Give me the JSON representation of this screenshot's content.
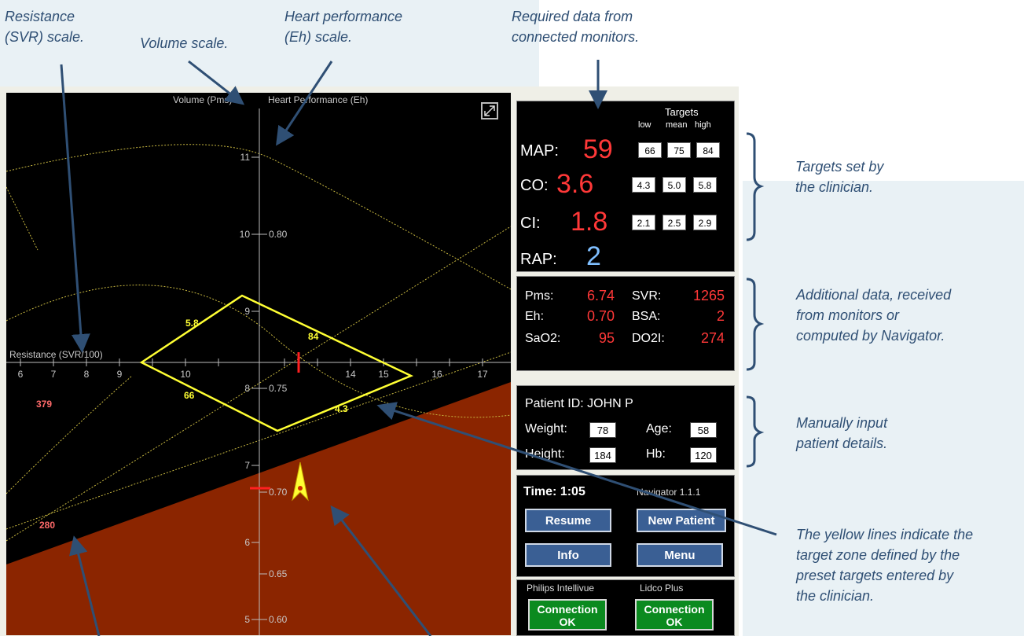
{
  "annotations": {
    "svr_scale": "Resistance (SVR) scale.",
    "volume_scale": "Volume scale.",
    "eh_scale_1": "Heart performance",
    "eh_scale_2": "(Eh) scale.",
    "required_1": "Required data from",
    "required_2": "connected monitors.",
    "targets_1": "Targets set by",
    "targets_2": "the clinician.",
    "additional_1": "Additional data, received",
    "additional_2": "from monitors or",
    "additional_3": "computed by Navigator.",
    "manual_1": "Manually input",
    "manual_2": "patient details.",
    "yellow_1": "The yellow lines indicate the",
    "yellow_2": "target zone defined by the",
    "yellow_3": "preset targets entered by",
    "yellow_4": "the clinician."
  },
  "plot": {
    "volume_axis_label": "Volume (Pms)",
    "eh_axis_label": "Heart Performance (Eh)",
    "svr_axis_label": "Resistance (SVR/100)",
    "volume_ticks": [
      "11",
      "10",
      "9",
      "8",
      "7",
      "6",
      "5"
    ],
    "eh_ticks": [
      "0.80",
      "0.75",
      "0.70",
      "0.65",
      "0.60"
    ],
    "svr_ticks": [
      "6",
      "7",
      "8",
      "9",
      "10",
      "14",
      "15",
      "16",
      "17"
    ],
    "zone_labels": {
      "left": "5.8",
      "top": "84",
      "bottom_left": "66",
      "bottom_right": "4.3"
    },
    "do2i_labels": {
      "upper": "379",
      "lower": "280"
    }
  },
  "targets": {
    "header": "Targets",
    "low": "low",
    "mean": "mean",
    "high": "high",
    "map": {
      "label": "MAP:",
      "value": "59",
      "low": "66",
      "mean": "75",
      "high": "84"
    },
    "co": {
      "label": "CO:",
      "value": "3.6",
      "low": "4.3",
      "mean": "5.0",
      "high": "5.8"
    },
    "ci": {
      "label": "CI:",
      "value": "1.8",
      "low": "2.1",
      "mean": "2.5",
      "high": "2.9"
    },
    "rap": {
      "label": "RAP:",
      "value": "2"
    }
  },
  "additional": {
    "pms_label": "Pms:",
    "pms_value": "6.74",
    "svr_label": "SVR:",
    "svr_value": "1265",
    "eh_label": "Eh:",
    "eh_value": "0.70",
    "bsa_label": "BSA:",
    "bsa_value": "2",
    "sao2_label": "SaO2:",
    "sao2_value": "95",
    "do2i_label": "DO2I:",
    "do2i_value": "274"
  },
  "patient": {
    "id_label": "Patient ID: JOHN P",
    "weight_label": "Weight:",
    "weight_value": "78",
    "age_label": "Age:",
    "age_value": "58",
    "height_label": "Height:",
    "height_value": "184",
    "hb_label": "Hb:",
    "hb_value": "120"
  },
  "controls": {
    "time_label": "Time: 1:05",
    "version": "Navigator 1.1.1",
    "resume": "Resume",
    "new_patient": "New Patient",
    "info": "Info",
    "menu": "Menu"
  },
  "connections": {
    "left_name": "Philips Intellivue",
    "right_name": "Lidco Plus",
    "status_line1": "Connection",
    "status_line2": "OK"
  },
  "colors": {
    "zone": "#ffff33",
    "red_value": "#ff3838",
    "rap_value": "#7fbfff",
    "button": "#3a5f94",
    "connection_ok": "#0b8a1f",
    "lower_region": "#8b2500",
    "annotation": "#2f4f74"
  }
}
